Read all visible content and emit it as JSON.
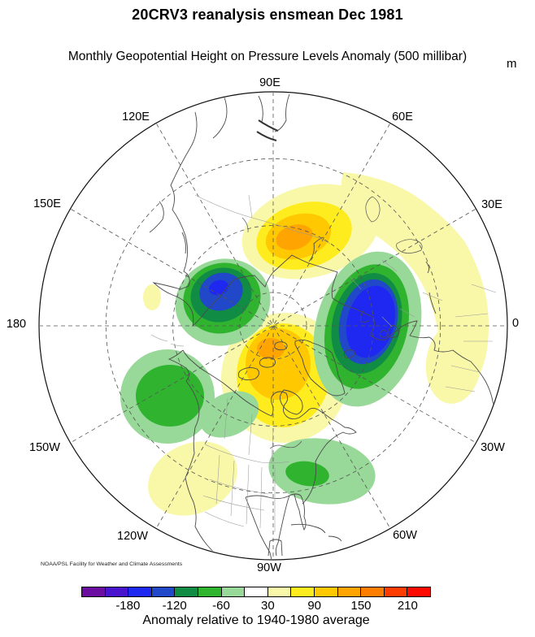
{
  "header": {
    "title": "20CRV3 reanalysis ensmean Dec 1981",
    "subtitle": "Monthly Geopotential Height on Pressure Levels Anomaly (500 millibar)",
    "units": "m"
  },
  "map": {
    "credit": "NOAA/PSL Facility for Weather and Climate Assessments",
    "lon_labels": [
      "90E",
      "60E",
      "30E",
      "0",
      "30W",
      "60W",
      "90W",
      "120W",
      "150W",
      "180",
      "150E",
      "120E"
    ]
  },
  "colorbar": {
    "colors": [
      "#6A0DA0",
      "#4814CE",
      "#1E28F0",
      "#2048C8",
      "#108C44",
      "#30B430",
      "#98D898",
      "#FFFFFF",
      "#F8F8A8",
      "#FFEC1E",
      "#FFC800",
      "#FFA400",
      "#FF7E00",
      "#FF3C00",
      "#FF0A00"
    ],
    "tick_labels": [
      "-180",
      "-120",
      "-60",
      "30",
      "90",
      "150",
      "210"
    ],
    "caption": "Anomaly relative to 1940-1980 average"
  },
  "chart_data": {
    "type": "heatmap",
    "title": "20CRV3 reanalysis ensmean Dec 1981",
    "subtitle": "Monthly Geopotential Height on Pressure Levels Anomaly (500 millibar)",
    "units": "m",
    "projection": "north polar azimuthal map, 20N-90N; 90E at top, 0 at right, 180 at left, 90W at bottom",
    "graticule": "dashed meridians every 30 degrees, dashed latitude circles at 40N, 60N, 80N",
    "contour_levels": [
      -210,
      -180,
      -150,
      -120,
      -90,
      -60,
      -30,
      30,
      60,
      90,
      120,
      150,
      180,
      210
    ],
    "palette": [
      "#6A0DA0",
      "#4814CE",
      "#1E28F0",
      "#2048C8",
      "#108C44",
      "#30B430",
      "#98D898",
      "#FFFFFF",
      "#F8F8A8",
      "#FFEC1E",
      "#FFC800",
      "#FFA400",
      "#FF7E00",
      "#FF3C00",
      "#FF0A00"
    ],
    "colorbar_tick_labels": [
      "-180",
      "-120",
      "-60",
      "30",
      "90",
      "150",
      "210"
    ],
    "caption": "Anomaly relative to 1940-1980 average",
    "longitude_labels": [
      "90E",
      "60E",
      "30E",
      "0",
      "30W",
      "60W",
      "90W",
      "120W",
      "150W",
      "180",
      "150E",
      "120E"
    ],
    "anomaly_centers": [
      {
        "region": "Northeast Siberia / Chukotka",
        "sign": "negative",
        "peak_band_m": "-180 to -150"
      },
      {
        "region": "Scandinavia / Northwest Russia",
        "sign": "negative",
        "peak_band_m": "-180 to -150"
      },
      {
        "region": "West-central Siberia",
        "sign": "positive",
        "peak_band_m": "120 to 150"
      },
      {
        "region": "Canadian Arctic / Greenland (polar cap)",
        "sign": "positive",
        "peak_band_m": "120 to 150"
      },
      {
        "region": "Gulf of Alaska / Northeast Pacific",
        "sign": "negative",
        "peak_band_m": "-90 to -60"
      },
      {
        "region": "Southeastern United States",
        "sign": "negative",
        "peak_band_m": "-90 to -60"
      },
      {
        "region": "Southwestern US / Baja California",
        "sign": "positive",
        "peak_band_m": "30 to 60"
      },
      {
        "region": "Europe / North Africa arc",
        "sign": "positive",
        "peak_band_m": "30 to 60"
      }
    ]
  }
}
